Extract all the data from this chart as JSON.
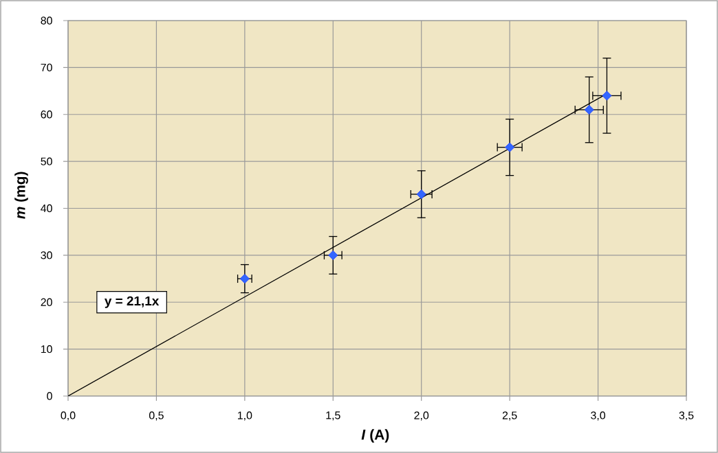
{
  "chart_data": {
    "type": "scatter",
    "xlabel": "*I* (A)",
    "ylabel": "*m* (mg)",
    "xlim": [
      0,
      3.5
    ],
    "ylim": [
      0,
      80
    ],
    "xticks": [
      {
        "value": 0,
        "label": "0,0"
      },
      {
        "value": 0.5,
        "label": "0,5"
      },
      {
        "value": 1,
        "label": "1,0"
      },
      {
        "value": 1.5,
        "label": "1,5"
      },
      {
        "value": 2,
        "label": "2,0"
      },
      {
        "value": 2.5,
        "label": "2,5"
      },
      {
        "value": 3,
        "label": "3,0"
      },
      {
        "value": 3.5,
        "label": "3,5"
      }
    ],
    "yticks": [
      0,
      10,
      20,
      30,
      40,
      50,
      60,
      70,
      80
    ],
    "grid": true,
    "series": [
      {
        "type": "line",
        "color": "#000000",
        "x": [
          0,
          3.05
        ],
        "values": [
          0,
          64.4
        ]
      },
      {
        "color": "#3366ff",
        "marker": "diamond",
        "x": [
          1,
          1.5,
          2,
          2.5,
          2.95,
          3.05
        ],
        "values": [
          25,
          30,
          43,
          53,
          61,
          64
        ],
        "errors": [
          3,
          4,
          5,
          6,
          7,
          8
        ],
        "xerrors": [
          0.04,
          0.05,
          0.06,
          0.07,
          0.08,
          0.08
        ]
      }
    ],
    "annotations": [
      "y = 21,1x"
    ]
  }
}
